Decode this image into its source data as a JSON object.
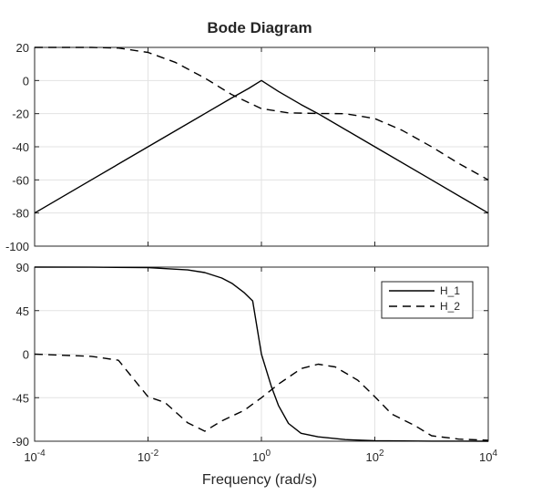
{
  "chart_data": [
    {
      "type": "line",
      "title": "Bode Diagram",
      "xscale": "log",
      "xlim": [
        0.0001,
        10000
      ],
      "ylim": [
        -100,
        20
      ],
      "grid": true,
      "yticks": [
        20,
        0,
        -20,
        -40,
        -60,
        -80,
        -100
      ],
      "ytick_labels": [
        "20",
        "0",
        "-20",
        "-40",
        "-60",
        "-80",
        "-100"
      ],
      "series": [
        {
          "style": "solid",
          "x": [
            0.0001,
            0.001,
            0.01,
            0.1,
            0.3,
            0.6,
            1,
            2,
            5,
            10,
            100,
            1000,
            10000
          ],
          "y": [
            -80,
            -60,
            -40,
            -20,
            -10.5,
            -4.7,
            0,
            -6.6,
            -14.5,
            -20,
            -40,
            -60,
            -80
          ]
        },
        {
          "style": "dashed",
          "x": [
            0.0001,
            0.001,
            0.003,
            0.01,
            0.03,
            0.1,
            0.3,
            1,
            3,
            10,
            30,
            100,
            300,
            1000,
            3000,
            10000
          ],
          "y": [
            20,
            20,
            19.6,
            17,
            11,
            1.5,
            -8.5,
            -17,
            -19.5,
            -19.9,
            -20,
            -23,
            -30,
            -40,
            -50,
            -60
          ]
        }
      ]
    },
    {
      "type": "line",
      "xlabel": "Frequency  (rad/s)",
      "xscale": "log",
      "xlim": [
        0.0001,
        10000
      ],
      "ylim": [
        -90,
        90
      ],
      "grid": true,
      "legend": "top-right",
      "yticks": [
        90,
        45,
        0,
        -45,
        -90
      ],
      "ytick_labels": [
        "90",
        "45",
        "0",
        "-45",
        "-90"
      ],
      "xticks": [
        0.0001,
        0.01,
        1,
        100,
        10000
      ],
      "xtick_labels": [
        {
          "base": "10",
          "exp": "-4"
        },
        {
          "base": "10",
          "exp": "-2"
        },
        {
          "base": "10",
          "exp": "0"
        },
        {
          "base": "10",
          "exp": "2"
        },
        {
          "base": "10",
          "exp": "4"
        }
      ],
      "series": [
        {
          "name": "H_1",
          "style": "solid",
          "x": [
            0.0001,
            0.001,
            0.01,
            0.05,
            0.1,
            0.2,
            0.3,
            0.5,
            0.7,
            1,
            1.5,
            2,
            3,
            5,
            10,
            30,
            100,
            1000,
            10000
          ],
          "y": [
            90,
            89.9,
            89.4,
            87.1,
            84.3,
            78.7,
            73.3,
            63.4,
            55,
            0,
            -33.7,
            -53.1,
            -71.6,
            -81.8,
            -85.5,
            -88.3,
            -89.4,
            -89.9,
            -90
          ]
        },
        {
          "name": "H_2",
          "style": "dashed",
          "x": [
            0.0001,
            0.001,
            0.003,
            0.01,
            0.02,
            0.05,
            0.1,
            0.2,
            0.5,
            1,
            2,
            5,
            10,
            20,
            50,
            100,
            200,
            500,
            1000,
            3000,
            10000
          ],
          "y": [
            0,
            -2.3,
            -6.3,
            -44,
            -50,
            -71,
            -79.6,
            -69,
            -58,
            -45,
            -31,
            -15,
            -10.4,
            -13.2,
            -27,
            -44,
            -62,
            -73.6,
            -84.3,
            -87.8,
            -89
          ]
        }
      ]
    }
  ]
}
